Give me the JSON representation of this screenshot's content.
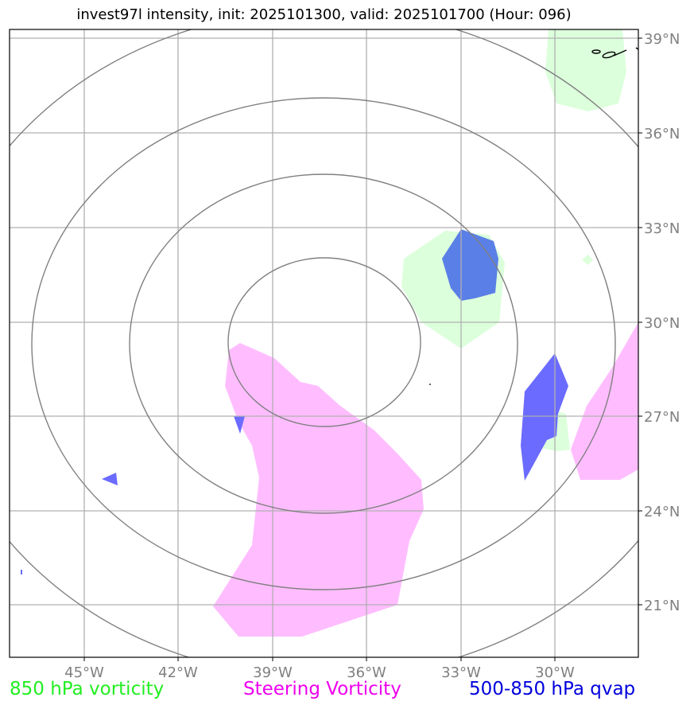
{
  "title": "invest97l intensity, init: 2025101300, valid: 2025101700 (Hour: 096)",
  "lon_labels": [
    "45°W",
    "42°W",
    "39°W",
    "36°W",
    "33°W",
    "30°W"
  ],
  "lat_labels": [
    "39°N",
    "36°N",
    "33°N",
    "30°N",
    "27°N",
    "24°N",
    "21°N"
  ],
  "legend": [
    {
      "label": "850 hPa vorticity",
      "color": "#22ee22"
    },
    {
      "label": "Steering Vorticity",
      "color": "#ee00ee"
    },
    {
      "label": "500-850 hPa qvap",
      "color": "#0000dd"
    }
  ],
  "colors": {
    "vort850_fill": "#dcffdc",
    "steering_fill": "#ffbdff",
    "qvap_fill": "#6b6bff",
    "qvap_fill_dark": "#5a7fe6",
    "grid": "#b0b0b0",
    "range_rings": "#808080",
    "tick_label": "#808080"
  }
}
